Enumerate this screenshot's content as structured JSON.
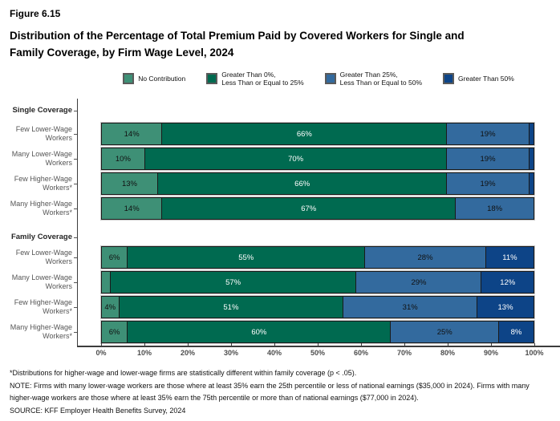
{
  "figure_label": "Figure 6.15",
  "title_line1": "Distribution of the Percentage of Total Premium Paid by Covered Workers for Single and",
  "title_line2": "Family Coverage, by Firm Wage Level, 2024",
  "colors": {
    "no_contribution": "#3E9076",
    "gt0_le25": "#006A50",
    "gt25_le50": "#336A9E",
    "gt50": "#0D4487",
    "axis": "#3c3c3c",
    "bar_border": "#1a1a1a"
  },
  "legend": {
    "items": [
      {
        "key": "no_contribution",
        "label": "No Contribution"
      },
      {
        "key": "gt0_le25",
        "label": "Greater Than 0%,\nLess Than or Equal to 25%"
      },
      {
        "key": "gt25_le50",
        "label": "Greater Than 25%,\nLess Than or Equal to 50%"
      },
      {
        "key": "gt50",
        "label": "Greater Than 50%"
      }
    ]
  },
  "chart_data": {
    "type": "bar",
    "orientation": "horizontal",
    "stacked": true,
    "title": "Distribution of the Percentage of Total Premium Paid by Covered Workers for Single and Family Coverage, by Firm Wage Level, 2024",
    "xlabel": "",
    "ylabel": "",
    "xlim": [
      0,
      100
    ],
    "grid": false,
    "legend_position": "top",
    "x_ticks": [
      "0%",
      "10%",
      "20%",
      "30%",
      "40%",
      "50%",
      "60%",
      "70%",
      "80%",
      "90%",
      "100%"
    ],
    "series_names": [
      "No Contribution",
      "Greater Than 0%, Less Than or Equal to 25%",
      "Greater Than 25%, Less Than or Equal to 50%",
      "Greater Than 50%"
    ],
    "series_keys": [
      "no-contribution",
      "gt0-le25",
      "gt25-le50",
      "gt50"
    ],
    "segment_colors": [
      "#3E9076",
      "#006A50",
      "#336A9E",
      "#0D4487"
    ],
    "segment_text_colors": [
      "#111111",
      "#ffffff",
      "#111111",
      "#ffffff"
    ],
    "groups": [
      {
        "label": "Single Coverage",
        "rows": [
          {
            "label": "Few Lower-Wage\nWorkers",
            "segments": [
              {
                "value": 14,
                "label": "14%"
              },
              {
                "value": 66,
                "label": "66%"
              },
              {
                "value": 19,
                "label": "19%"
              },
              {
                "value": 1,
                "label": ""
              }
            ]
          },
          {
            "label": "Many Lower-Wage\nWorkers",
            "segments": [
              {
                "value": 10,
                "label": "10%"
              },
              {
                "value": 70,
                "label": "70%"
              },
              {
                "value": 19,
                "label": "19%"
              },
              {
                "value": 1,
                "label": ""
              }
            ]
          },
          {
            "label": "Few Higher-Wage\nWorkers*",
            "segments": [
              {
                "value": 13,
                "label": "13%"
              },
              {
                "value": 66,
                "label": "66%"
              },
              {
                "value": 19,
                "label": "19%"
              },
              {
                "value": 1,
                "label": ""
              }
            ]
          },
          {
            "label": "Many Higher-Wage\nWorkers*",
            "segments": [
              {
                "value": 14,
                "label": "14%"
              },
              {
                "value": 67,
                "label": "67%"
              },
              {
                "value": 18,
                "label": "18%"
              },
              {
                "value": 0,
                "label": ""
              }
            ]
          }
        ]
      },
      {
        "label": "Family Coverage",
        "rows": [
          {
            "label": "Few Lower-Wage\nWorkers",
            "segments": [
              {
                "value": 6,
                "label": "6%"
              },
              {
                "value": 55,
                "label": "55%"
              },
              {
                "value": 28,
                "label": "28%"
              },
              {
                "value": 11,
                "label": "11%"
              }
            ]
          },
          {
            "label": "Many Lower-Wage\nWorkers",
            "segments": [
              {
                "value": 2,
                "label": ""
              },
              {
                "value": 57,
                "label": "57%"
              },
              {
                "value": 29,
                "label": "29%"
              },
              {
                "value": 12,
                "label": "12%"
              }
            ]
          },
          {
            "label": "Few Higher-Wage\nWorkers*",
            "segments": [
              {
                "value": 4,
                "label": "4%"
              },
              {
                "value": 51,
                "label": "51%"
              },
              {
                "value": 31,
                "label": "31%"
              },
              {
                "value": 13,
                "label": "13%"
              }
            ]
          },
          {
            "label": "Many Higher-Wage\nWorkers*",
            "segments": [
              {
                "value": 6,
                "label": "6%"
              },
              {
                "value": 60,
                "label": "60%"
              },
              {
                "value": 25,
                "label": "25%"
              },
              {
                "value": 8,
                "label": "8%"
              }
            ]
          }
        ]
      }
    ]
  },
  "footnotes": [
    "*Distributions for higher-wage and lower-wage firms are statistically different within family coverage (p < .05).",
    "NOTE: Firms with many lower-wage workers are those where at least 35% earn the 25th percentile or less of national earnings ($35,000 in 2024). Firms with many higher-wage workers are those where at least 35% earn the 75th percentile or more than of national earnings ($77,000 in 2024).",
    "SOURCE: KFF Employer Health Benefits Survey, 2024"
  ]
}
